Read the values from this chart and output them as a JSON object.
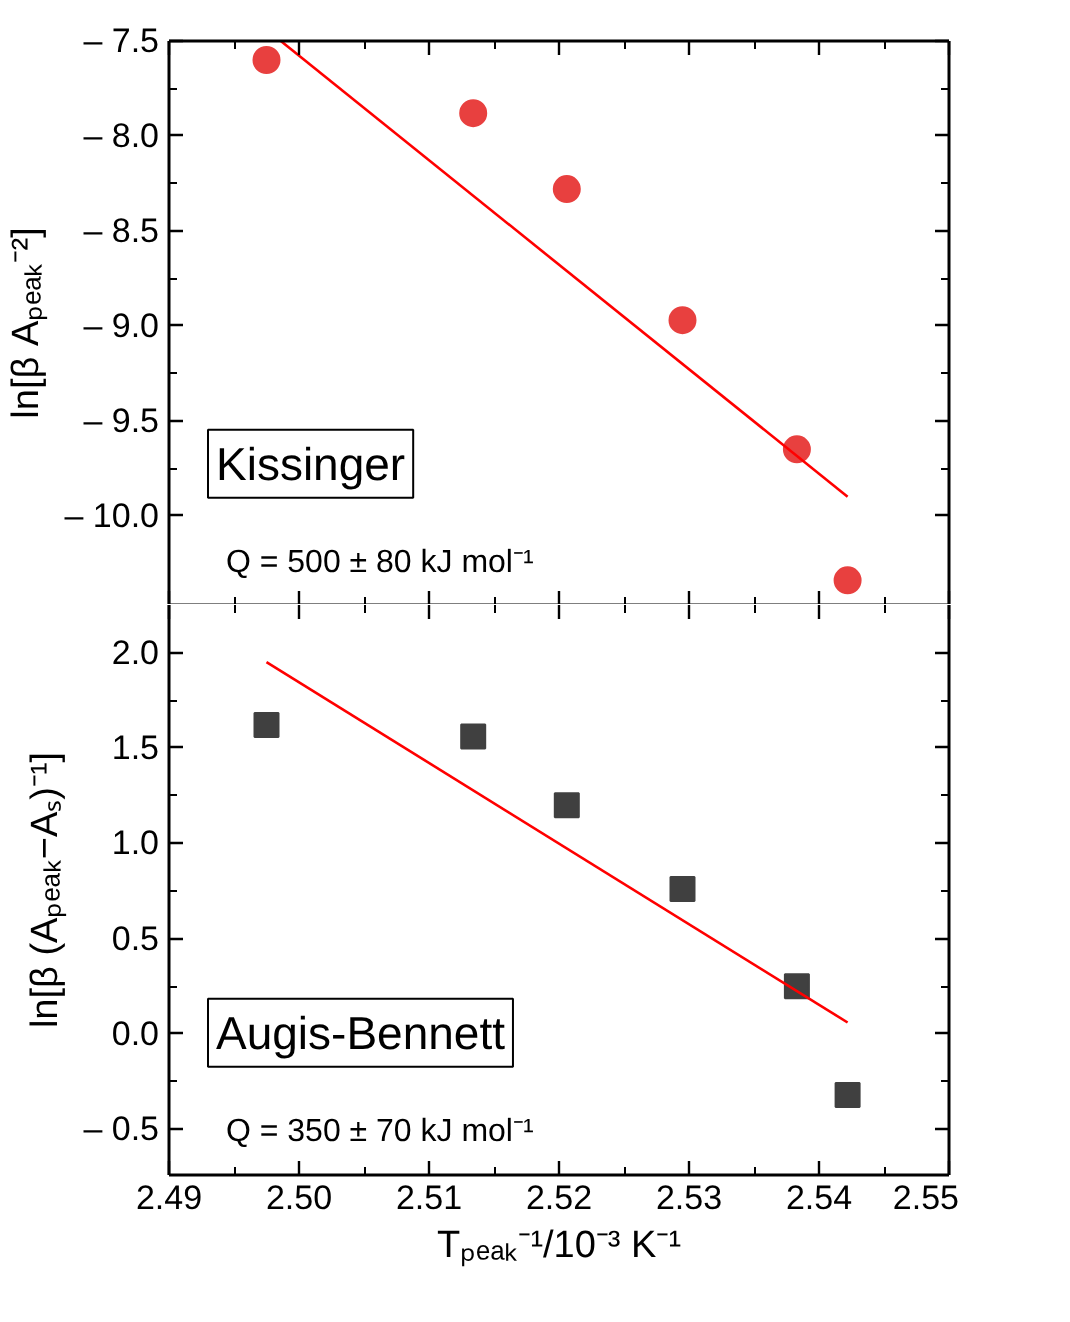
{
  "chart_data": [
    {
      "type": "scatter",
      "ylabel": "ln[β Aₚₑₐₖ⁻²]",
      "xlim": [
        2.49,
        2.55
      ],
      "ylim": [
        -10.47,
        -7.5
      ],
      "tick_labels": "y",
      "grid": false,
      "yticks": [
        {
          "value": -10.0,
          "label": "– 10.0"
        },
        {
          "value": -9.5,
          "label": "– 9.5"
        },
        {
          "value": -9.0,
          "label": "– 9.0"
        },
        {
          "value": -8.5,
          "label": "– 8.5"
        },
        {
          "value": -8.0,
          "label": "– 8.0"
        },
        {
          "value": -7.5,
          "label": "– 7.5"
        }
      ],
      "xticks": [
        {
          "value": 2.49,
          "label": null
        },
        {
          "value": 2.5,
          "label": null
        },
        {
          "value": 2.51,
          "label": null
        },
        {
          "value": 2.52,
          "label": null
        },
        {
          "value": 2.53,
          "label": null
        },
        {
          "value": 2.54,
          "label": null
        },
        {
          "value": 2.55,
          "label": null
        }
      ],
      "series": [
        {
          "marker": "circle",
          "color": "#e8403f",
          "x": [
            2.4975,
            2.5134,
            2.5206,
            2.5295,
            2.5383,
            2.5422
          ],
          "values": [
            -7.6,
            -7.88,
            -8.28,
            -8.97,
            -9.65,
            -10.34
          ]
        },
        {
          "type": "line",
          "color": "#ff0000",
          "x": [
            2.4986,
            2.5422
          ],
          "values": [
            -7.5,
            -9.9
          ]
        }
      ],
      "annotations": [
        "Kissinger",
        "Q = 500 ± 80 kJ mol⁻¹"
      ]
    },
    {
      "type": "scatter",
      "ylabel": "ln[β (Aₚₑₐₖ−Aₛ)⁻¹]",
      "xlabel": "Tₚₑₐₖ⁻¹/10⁻³ K⁻¹",
      "xlim": [
        2.49,
        2.55
      ],
      "ylim": [
        -0.74,
        2.25
      ],
      "grid": false,
      "yticks": [
        {
          "value": -0.5,
          "label": "– 0.5"
        },
        {
          "value": 0,
          "label": "0.0"
        },
        0.5,
        {
          "value": 1,
          "label": "1.0"
        },
        1.5,
        {
          "value": 2,
          "label": "2.0"
        }
      ],
      "xticks": [
        2.49,
        {
          "value": 2.5,
          "label": "2.50"
        },
        2.51,
        2.52,
        2.53,
        2.54,
        2.55
      ],
      "series": [
        {
          "marker": "square",
          "color": "#404040",
          "x": [
            2.4975,
            2.5134,
            2.5206,
            2.5295,
            2.5383,
            2.5422
          ],
          "values": [
            1.62,
            1.56,
            1.2,
            0.76,
            0.25,
            -0.32
          ]
        },
        {
          "type": "line",
          "color": "#ff0000",
          "x": [
            2.4975,
            2.5422
          ],
          "values": [
            1.95,
            0.06
          ]
        }
      ],
      "annotations": [
        "Augis-Bennett",
        "Q = 350 ± 70 kJ mol⁻¹"
      ]
    }
  ]
}
